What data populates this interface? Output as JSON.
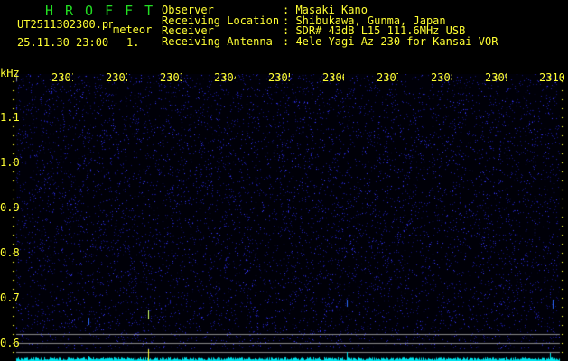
{
  "header": {
    "app_name": "HROFFT",
    "filename": "UT2511302300.png",
    "mode": "meteor",
    "datetime": "25.11.30 23:00",
    "index": "1.",
    "fields": [
      {
        "label": "Observer",
        "value": ": Masaki Kano"
      },
      {
        "label": "Receiving Location",
        "value": ": Shibukawa, Gunma, Japan"
      },
      {
        "label": "Receiver",
        "value": ": SDR# 43dB L15 111.6MHz USB"
      },
      {
        "label": "Receiving Antenna",
        "value": ": 4ele Yagi Az 230 for Kansai VOR"
      }
    ]
  },
  "spectrogram": {
    "y_unit": "kHz",
    "x_ticks": [
      "2301",
      "2302",
      "2303",
      "2304",
      "2305",
      "2306",
      "2307",
      "2308",
      "2309",
      "2310"
    ],
    "y_ticks": [
      "1.1",
      "1.0",
      "0.9",
      "0.8",
      "0.7",
      "0.6"
    ],
    "colors": {
      "background": "#000010",
      "noise": "#1a1aa0",
      "labels": "#ffff33",
      "histogram": "#00e5ee",
      "title": "#22dd22"
    }
  }
}
